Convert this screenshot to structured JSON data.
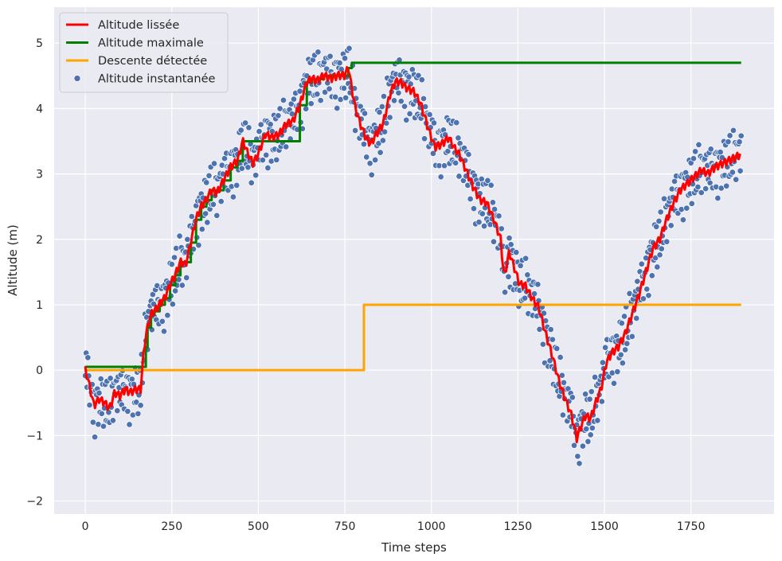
{
  "chart_data": {
    "type": "line",
    "title": "",
    "xlabel": "Time steps",
    "ylabel": "Altitude (m)",
    "xlim": [
      -90,
      1990
    ],
    "ylim": [
      -2.2,
      5.55
    ],
    "x_ticks": [
      0,
      250,
      500,
      750,
      1000,
      1250,
      1500,
      1750
    ],
    "y_ticks": [
      -2,
      -1,
      0,
      1,
      2,
      3,
      4,
      5
    ],
    "y_tick_labels": [
      "−2",
      "−1",
      "0",
      "1",
      "2",
      "3",
      "4",
      "5"
    ],
    "grid": true,
    "legend_position": "top-left",
    "background": "#eaeaf2",
    "series": [
      {
        "name": "Altitude lissée",
        "kind": "line",
        "color": "#ff0000",
        "x": [
          0,
          10,
          25,
          40,
          55,
          70,
          85,
          100,
          115,
          130,
          145,
          160,
          170,
          180,
          190,
          200,
          215,
          230,
          245,
          260,
          275,
          290,
          305,
          320,
          335,
          350,
          365,
          380,
          400,
          420,
          440,
          455,
          470,
          485,
          500,
          520,
          540,
          560,
          580,
          600,
          620,
          640,
          655,
          670,
          690,
          710,
          730,
          750,
          760,
          770,
          780,
          795,
          810,
          825,
          840,
          860,
          880,
          895,
          910,
          930,
          950,
          970,
          990,
          1010,
          1030,
          1050,
          1065,
          1080,
          1100,
          1120,
          1140,
          1160,
          1180,
          1200,
          1210,
          1225,
          1240,
          1255,
          1270,
          1290,
          1310,
          1330,
          1350,
          1370,
          1390,
          1405,
          1420,
          1430,
          1445,
          1460,
          1475,
          1490,
          1505,
          1520,
          1540,
          1560,
          1580,
          1600,
          1620,
          1640,
          1660,
          1680,
          1700,
          1720,
          1740,
          1760,
          1780,
          1800,
          1820,
          1840,
          1860,
          1880,
          1895
        ],
        "y": [
          0.0,
          -0.2,
          -0.55,
          -0.45,
          -0.5,
          -0.6,
          -0.35,
          -0.4,
          -0.3,
          -0.35,
          -0.3,
          -0.3,
          0.35,
          0.65,
          0.85,
          0.9,
          1.0,
          1.1,
          1.3,
          1.45,
          1.65,
          1.6,
          1.95,
          2.3,
          2.5,
          2.6,
          2.75,
          2.7,
          2.9,
          3.1,
          3.2,
          3.5,
          3.3,
          3.15,
          3.3,
          3.6,
          3.55,
          3.6,
          3.75,
          3.8,
          4.05,
          4.4,
          4.45,
          4.42,
          4.5,
          4.45,
          4.5,
          4.5,
          4.62,
          4.3,
          4.0,
          3.75,
          3.55,
          3.45,
          3.6,
          3.75,
          4.2,
          4.4,
          4.4,
          4.3,
          4.25,
          4.05,
          3.7,
          3.4,
          3.45,
          3.55,
          3.4,
          3.3,
          3.05,
          2.8,
          2.6,
          2.55,
          2.3,
          2.0,
          1.4,
          1.8,
          1.55,
          1.3,
          1.3,
          1.1,
          0.95,
          0.55,
          0.2,
          -0.2,
          -0.5,
          -0.7,
          -1.05,
          -0.9,
          -0.7,
          -0.75,
          -0.5,
          -0.3,
          0.1,
          0.25,
          0.35,
          0.55,
          0.85,
          1.15,
          1.5,
          1.85,
          2.0,
          2.3,
          2.55,
          2.75,
          2.85,
          2.95,
          3.05,
          3.0,
          3.1,
          3.15,
          3.2,
          3.25,
          3.3
        ]
      },
      {
        "name": "Altitude maximale",
        "kind": "step",
        "color": "#008000",
        "x": [
          0,
          160,
          175,
          180,
          190,
          200,
          215,
          230,
          245,
          260,
          275,
          305,
          320,
          335,
          350,
          365,
          380,
          400,
          420,
          440,
          455,
          620,
          640,
          655,
          690,
          750,
          760,
          770,
          1895
        ],
        "y": [
          0.05,
          0.05,
          0.35,
          0.65,
          0.85,
          0.9,
          1.0,
          1.1,
          1.3,
          1.45,
          1.65,
          1.95,
          2.3,
          2.5,
          2.6,
          2.75,
          2.75,
          2.9,
          3.1,
          3.2,
          3.5,
          4.05,
          4.4,
          4.45,
          4.5,
          4.5,
          4.62,
          4.7,
          4.7
        ]
      },
      {
        "name": "Descente détectée",
        "kind": "step",
        "color": "#ffa500",
        "x": [
          0,
          805,
          805,
          1895
        ],
        "y": [
          0,
          0,
          1,
          1
        ]
      },
      {
        "name": "Altitude instantanée",
        "kind": "scatter",
        "color": "#4c72b0",
        "derived_from": "Altitude lissée",
        "scatter_offsets": [
          -0.28,
          0.31,
          -0.12,
          0.44,
          0.05,
          -0.39,
          0.22,
          -0.07,
          0.36,
          -0.21,
          0.14,
          -0.46,
          0.27,
          -0.02,
          0.4,
          -0.33,
          0.09,
          -0.17,
          0.48,
          -0.26,
          0.18,
          -0.41,
          0.03,
          0.33,
          -0.09,
          0.25,
          -0.36,
          0.11,
          -0.23,
          0.42,
          -0.05,
          0.2,
          -0.44,
          0.29,
          -0.14,
          0.07,
          0.38,
          -0.3,
          0.16,
          -0.01
        ]
      }
    ]
  }
}
